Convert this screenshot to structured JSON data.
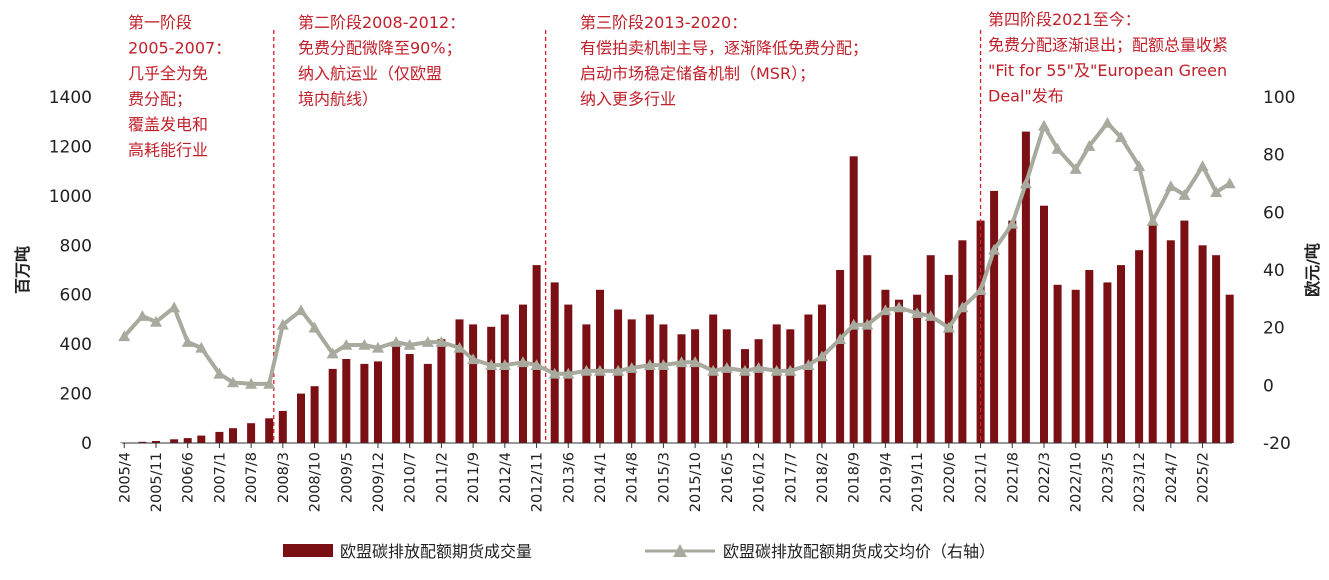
{
  "chart_data": {
    "type": "bar",
    "series": [
      {
        "name": "欧盟碳排放配额期货成交量",
        "axis": "left",
        "type": "bar",
        "color": "#7a0f14",
        "values_by_month": [
          {
            "x": "2005/4",
            "y": 2
          },
          {
            "x": "2005/8",
            "y": 5
          },
          {
            "x": "2005/11",
            "y": 8
          },
          {
            "x": "2006/3",
            "y": 15
          },
          {
            "x": "2006/6",
            "y": 20
          },
          {
            "x": "2006/9",
            "y": 30
          },
          {
            "x": "2007/1",
            "y": 45
          },
          {
            "x": "2007/4",
            "y": 60
          },
          {
            "x": "2007/8",
            "y": 80
          },
          {
            "x": "2007/12",
            "y": 100
          },
          {
            "x": "2008/3",
            "y": 130
          },
          {
            "x": "2008/7",
            "y": 200
          },
          {
            "x": "2008/10",
            "y": 230
          },
          {
            "x": "2009/2",
            "y": 300
          },
          {
            "x": "2009/5",
            "y": 340
          },
          {
            "x": "2009/9",
            "y": 320
          },
          {
            "x": "2009/12",
            "y": 330
          },
          {
            "x": "2010/4",
            "y": 400
          },
          {
            "x": "2010/7",
            "y": 360
          },
          {
            "x": "2010/11",
            "y": 320
          },
          {
            "x": "2011/2",
            "y": 420
          },
          {
            "x": "2011/6",
            "y": 500
          },
          {
            "x": "2011/9",
            "y": 480
          },
          {
            "x": "2012/1",
            "y": 470
          },
          {
            "x": "2012/4",
            "y": 520
          },
          {
            "x": "2012/8",
            "y": 560
          },
          {
            "x": "2012/11",
            "y": 720
          },
          {
            "x": "2013/3",
            "y": 650
          },
          {
            "x": "2013/6",
            "y": 560
          },
          {
            "x": "2013/10",
            "y": 480
          },
          {
            "x": "2014/1",
            "y": 620
          },
          {
            "x": "2014/5",
            "y": 540
          },
          {
            "x": "2014/8",
            "y": 500
          },
          {
            "x": "2014/12",
            "y": 520
          },
          {
            "x": "2015/3",
            "y": 480
          },
          {
            "x": "2015/7",
            "y": 440
          },
          {
            "x": "2015/10",
            "y": 460
          },
          {
            "x": "2016/2",
            "y": 520
          },
          {
            "x": "2016/5",
            "y": 460
          },
          {
            "x": "2016/9",
            "y": 380
          },
          {
            "x": "2016/12",
            "y": 420
          },
          {
            "x": "2017/4",
            "y": 480
          },
          {
            "x": "2017/7",
            "y": 460
          },
          {
            "x": "2017/11",
            "y": 520
          },
          {
            "x": "2018/2",
            "y": 560
          },
          {
            "x": "2018/6",
            "y": 700
          },
          {
            "x": "2018/9",
            "y": 1160
          },
          {
            "x": "2018/12",
            "y": 760
          },
          {
            "x": "2019/4",
            "y": 620
          },
          {
            "x": "2019/7",
            "y": 580
          },
          {
            "x": "2019/11",
            "y": 600
          },
          {
            "x": "2020/2",
            "y": 760
          },
          {
            "x": "2020/6",
            "y": 680
          },
          {
            "x": "2020/9",
            "y": 820
          },
          {
            "x": "2021/1",
            "y": 900
          },
          {
            "x": "2021/4",
            "y": 1020
          },
          {
            "x": "2021/8",
            "y": 900
          },
          {
            "x": "2021/11",
            "y": 1260
          },
          {
            "x": "2022/3",
            "y": 960
          },
          {
            "x": "2022/6",
            "y": 640
          },
          {
            "x": "2022/10",
            "y": 620
          },
          {
            "x": "2023/1",
            "y": 700
          },
          {
            "x": "2023/5",
            "y": 650
          },
          {
            "x": "2023/8",
            "y": 720
          },
          {
            "x": "2023/12",
            "y": 780
          },
          {
            "x": "2024/3",
            "y": 880
          },
          {
            "x": "2024/7",
            "y": 820
          },
          {
            "x": "2024/10",
            "y": 900
          },
          {
            "x": "2025/2",
            "y": 800
          },
          {
            "x": "2025/5",
            "y": 760
          },
          {
            "x": "2025/8",
            "y": 600
          }
        ]
      },
      {
        "name": "欧盟碳排放配额期货成交均价（右轴）",
        "axis": "right",
        "type": "line",
        "color": "#a7aa9c",
        "values_by_month": [
          {
            "x": "2005/4",
            "y": 17
          },
          {
            "x": "2005/8",
            "y": 24
          },
          {
            "x": "2005/11",
            "y": 22
          },
          {
            "x": "2006/3",
            "y": 27
          },
          {
            "x": "2006/6",
            "y": 15
          },
          {
            "x": "2006/9",
            "y": 13
          },
          {
            "x": "2007/1",
            "y": 4
          },
          {
            "x": "2007/4",
            "y": 1
          },
          {
            "x": "2007/8",
            "y": 0.5
          },
          {
            "x": "2007/12",
            "y": 0.5
          },
          {
            "x": "2008/3",
            "y": 21
          },
          {
            "x": "2008/7",
            "y": 26
          },
          {
            "x": "2008/10",
            "y": 20
          },
          {
            "x": "2009/2",
            "y": 11
          },
          {
            "x": "2009/5",
            "y": 14
          },
          {
            "x": "2009/9",
            "y": 14
          },
          {
            "x": "2009/12",
            "y": 13
          },
          {
            "x": "2010/4",
            "y": 15
          },
          {
            "x": "2010/7",
            "y": 14
          },
          {
            "x": "2010/11",
            "y": 15
          },
          {
            "x": "2011/2",
            "y": 15
          },
          {
            "x": "2011/6",
            "y": 13
          },
          {
            "x": "2011/9",
            "y": 9
          },
          {
            "x": "2012/1",
            "y": 7
          },
          {
            "x": "2012/4",
            "y": 7
          },
          {
            "x": "2012/8",
            "y": 8
          },
          {
            "x": "2012/11",
            "y": 7
          },
          {
            "x": "2013/3",
            "y": 4
          },
          {
            "x": "2013/6",
            "y": 4
          },
          {
            "x": "2013/10",
            "y": 5
          },
          {
            "x": "2014/1",
            "y": 5
          },
          {
            "x": "2014/5",
            "y": 5
          },
          {
            "x": "2014/8",
            "y": 6
          },
          {
            "x": "2014/12",
            "y": 7
          },
          {
            "x": "2015/3",
            "y": 7
          },
          {
            "x": "2015/7",
            "y": 8
          },
          {
            "x": "2015/10",
            "y": 8
          },
          {
            "x": "2016/2",
            "y": 5
          },
          {
            "x": "2016/5",
            "y": 6
          },
          {
            "x": "2016/9",
            "y": 5
          },
          {
            "x": "2016/12",
            "y": 6
          },
          {
            "x": "2017/4",
            "y": 5
          },
          {
            "x": "2017/7",
            "y": 5
          },
          {
            "x": "2017/11",
            "y": 7
          },
          {
            "x": "2018/2",
            "y": 10
          },
          {
            "x": "2018/6",
            "y": 16
          },
          {
            "x": "2018/9",
            "y": 21
          },
          {
            "x": "2018/12",
            "y": 21
          },
          {
            "x": "2019/4",
            "y": 26
          },
          {
            "x": "2019/7",
            "y": 27
          },
          {
            "x": "2019/11",
            "y": 25
          },
          {
            "x": "2020/2",
            "y": 24
          },
          {
            "x": "2020/6",
            "y": 20
          },
          {
            "x": "2020/9",
            "y": 27
          },
          {
            "x": "2021/1",
            "y": 33
          },
          {
            "x": "2021/4",
            "y": 47
          },
          {
            "x": "2021/8",
            "y": 56
          },
          {
            "x": "2021/11",
            "y": 70
          },
          {
            "x": "2022/3",
            "y": 90
          },
          {
            "x": "2022/6",
            "y": 82
          },
          {
            "x": "2022/10",
            "y": 75
          },
          {
            "x": "2023/1",
            "y": 83
          },
          {
            "x": "2023/5",
            "y": 91
          },
          {
            "x": "2023/8",
            "y": 86
          },
          {
            "x": "2023/12",
            "y": 76
          },
          {
            "x": "2024/3",
            "y": 57
          },
          {
            "x": "2024/7",
            "y": 69
          },
          {
            "x": "2024/10",
            "y": 66
          },
          {
            "x": "2025/2",
            "y": 76
          },
          {
            "x": "2025/5",
            "y": 67
          },
          {
            "x": "2025/8",
            "y": 70
          }
        ]
      }
    ],
    "x_tick_labels": [
      "2005/4",
      "2005/11",
      "2006/6",
      "2007/1",
      "2007/8",
      "2008/3",
      "2008/10",
      "2009/5",
      "2009/12",
      "2010/7",
      "2011/2",
      "2011/9",
      "2012/4",
      "2012/11",
      "2013/6",
      "2014/1",
      "2014/8",
      "2015/3",
      "2015/10",
      "2016/5",
      "2016/12",
      "2017/7",
      "2018/2",
      "2018/9",
      "2019/4",
      "2019/11",
      "2020/6",
      "2021/1",
      "2021/8",
      "2022/3",
      "2022/10",
      "2023/5",
      "2023/12",
      "2024/7",
      "2025/2"
    ],
    "xlim": [
      "2005/4",
      "2025/8"
    ],
    "y_left": {
      "label": "百万吨",
      "ylim": [
        0,
        1400
      ],
      "ticks": [
        "0",
        "200",
        "400",
        "600",
        "800",
        "1000",
        "1200",
        "1400"
      ]
    },
    "y_right": {
      "label": "欧元/吨",
      "ylim": [
        -20,
        100
      ],
      "ticks": [
        "-20",
        "0",
        "20",
        "40",
        "60",
        "80",
        "100"
      ]
    },
    "phase_dividers": [
      "2008/1",
      "2013/1",
      "2021/1"
    ],
    "annotations": [
      {
        "id": "phase1",
        "lines": [
          "第一阶段",
          "2005-2007：",
          "几乎全为免",
          "费分配；",
          "覆盖发电和",
          "高耗能行业"
        ]
      },
      {
        "id": "phase2",
        "lines": [
          "第二阶段2008-2012：",
          "免费分配微降至90%；",
          "纳入航运业（仅欧盟",
          "境内航线）"
        ]
      },
      {
        "id": "phase3",
        "lines": [
          "第三阶段2013-2020：",
          "有偿拍卖机制主导，逐渐降低免费分配；",
          "启动市场稳定储备机制（MSR）；",
          "纳入更多行业"
        ]
      },
      {
        "id": "phase4",
        "lines": [
          "第四阶段2021至今：",
          "免费分配逐渐退出；配额总量收紧",
          "\"Fit for 55\"及\"European Green",
          "Deal\"发布"
        ]
      }
    ],
    "legend": {
      "placement": "bottom",
      "items": [
        {
          "label": "欧盟碳排放配额期货成交量",
          "marker": "bar",
          "color": "#7a0f14"
        },
        {
          "label": "欧盟碳排放配额期货成交均价（右轴）",
          "marker": "line-triangle",
          "color": "#a7aa9c"
        }
      ]
    },
    "grid": false
  }
}
